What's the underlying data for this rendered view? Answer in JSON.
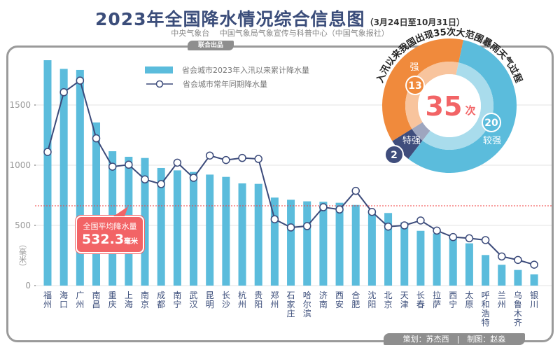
{
  "header": {
    "title": "2023年全国降水情况综合信息图",
    "date_range": "（3月24日至10月31日）",
    "subtitle": "中央气象台　 中国气象局气象宣传与科普中心（中国气象报社）",
    "badge": "联合出品"
  },
  "footer": {
    "credit": "策划：苏杰西　|　制图：赵淼"
  },
  "callout": {
    "label": "全国平均降水量",
    "value": "532.3",
    "unit": "毫米"
  },
  "donut": {
    "arc_title": "入汛以来我国出现35次大范围暴雨天气过程",
    "total": "35",
    "total_unit": "次",
    "segments": [
      {
        "label": "较强",
        "value": 20,
        "color": "#5bbcdc",
        "inner_color": "#a9dcec"
      },
      {
        "label": "特强",
        "value": 2,
        "color": "#3f4d7c",
        "inner_color": "#9ea6bf"
      },
      {
        "label": "强",
        "value": 13,
        "color": "#f08a3c",
        "inner_color": "#f8c49d"
      }
    ]
  },
  "chart_data": {
    "type": "bar",
    "ylabel": "（毫米）",
    "ylim": [
      0,
      1900
    ],
    "yticks": [
      0,
      500,
      1000,
      1500
    ],
    "grid": true,
    "legend_position": "top",
    "avg_line_value": 663,
    "avg_line_color": "#f03c3c",
    "categories": [
      "福州",
      "海口",
      "广州",
      "南昌",
      "重庆",
      "上海",
      "南京",
      "成都",
      "南宁",
      "武汉",
      "昆明",
      "长沙",
      "杭州",
      "贵阳",
      "郑州",
      "石家庄",
      "哈尔滨",
      "济南",
      "西安",
      "合肥",
      "沈阳",
      "北京",
      "天津",
      "长春",
      "拉萨",
      "西宁",
      "太原",
      "呼和浩特",
      "兰州",
      "乌鲁木齐",
      "银川"
    ],
    "series": [
      {
        "name": "省会城市2023年入汛以来累计降水量",
        "type": "bar",
        "color": "#5bbcdc",
        "values": [
          1872,
          1800,
          1791,
          1355,
          1116,
          1070,
          1060,
          977,
          957,
          944,
          922,
          903,
          849,
          845,
          731,
          713,
          700,
          696,
          688,
          670,
          612,
          603,
          525,
          455,
          434,
          405,
          351,
          254,
          173,
          130,
          93
        ]
      },
      {
        "name": "省会城市常年同期降水量",
        "type": "line",
        "color": "#3b4a7a",
        "values": [
          1110,
          1606,
          1703,
          1223,
          988,
          1004,
          882,
          843,
          1021,
          895,
          1080,
          1043,
          1060,
          1052,
          551,
          483,
          494,
          651,
          632,
          787,
          612,
          490,
          500,
          541,
          457,
          403,
          393,
          378,
          242,
          213,
          174
        ]
      }
    ]
  }
}
